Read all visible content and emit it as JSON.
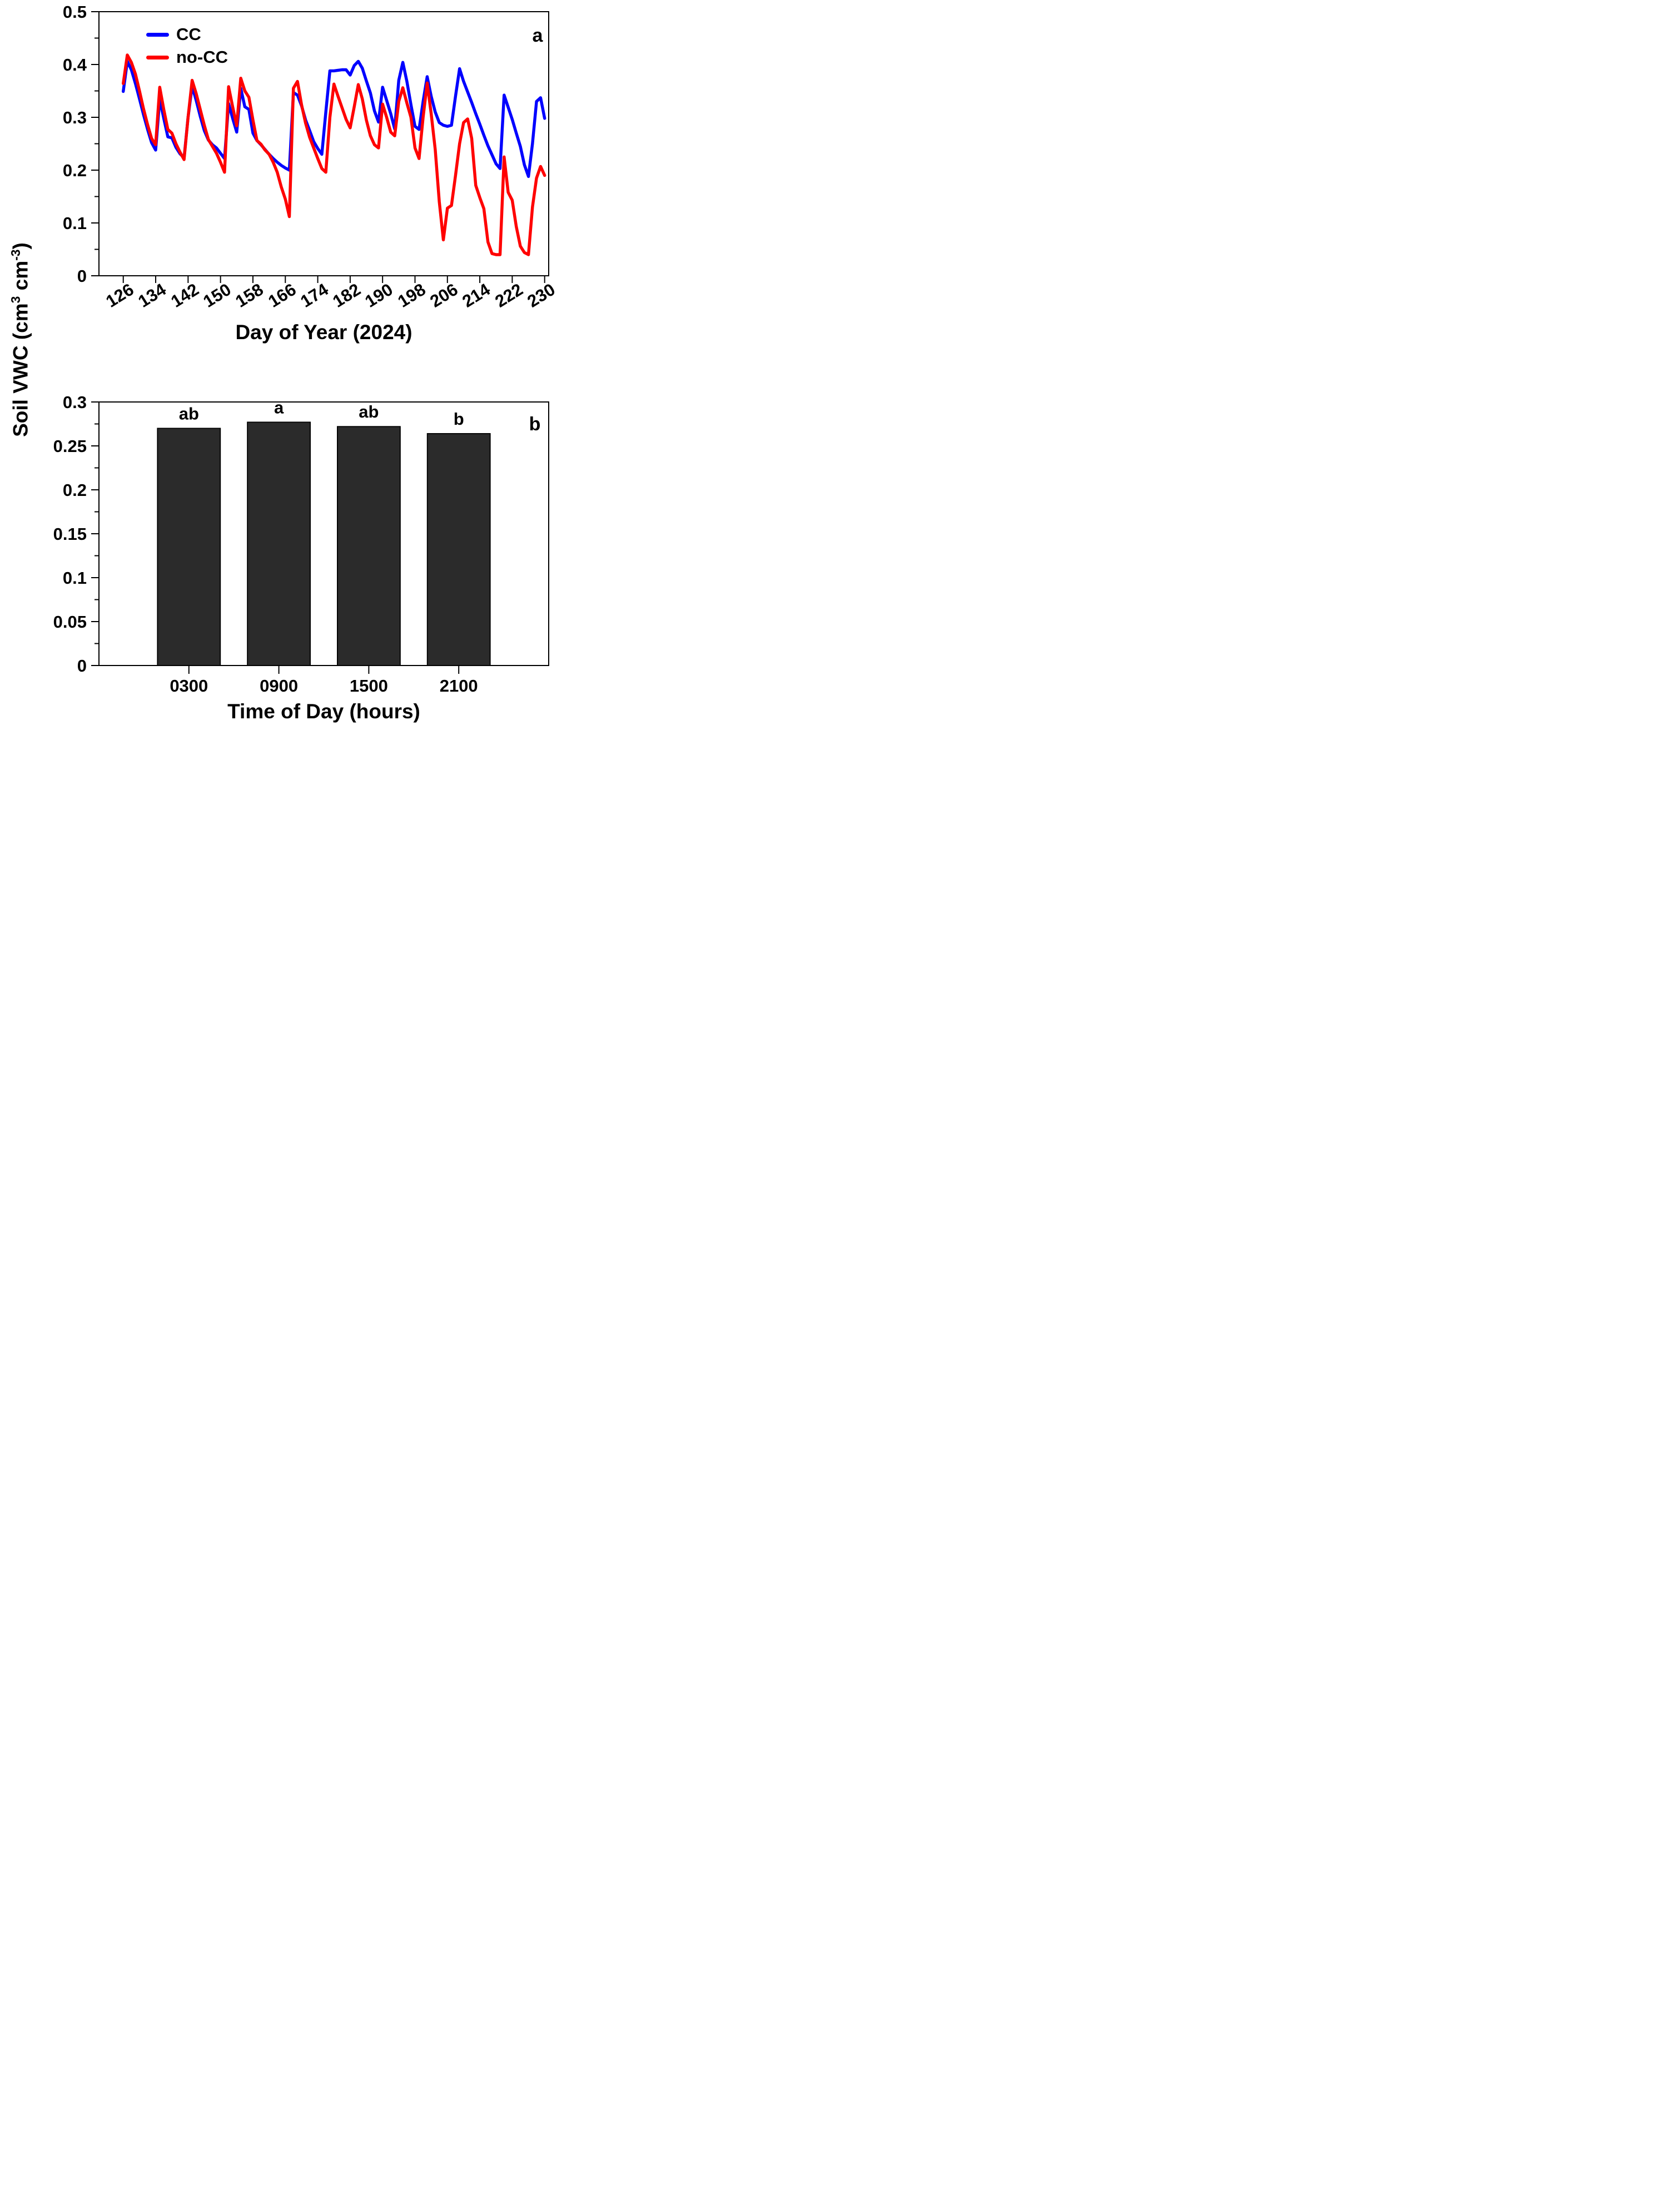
{
  "shared": {
    "y_label_parts": {
      "pre": "Soil VWC (cm",
      "sup1": "3",
      "mid": " cm",
      "sup2": "-3",
      "post": ")"
    }
  },
  "chart_data": [
    {
      "type": "line",
      "panel_label": "a",
      "xlabel": "Day of Year (2024)",
      "ylabel": "Soil VWC (cm^3 cm^-3)",
      "xlim": [
        120,
        231
      ],
      "ylim": [
        0,
        0.5
      ],
      "x_ticks": [
        126,
        134,
        142,
        150,
        158,
        166,
        174,
        182,
        190,
        198,
        206,
        214,
        222,
        230
      ],
      "y_tick_labels": [
        "0",
        "0.1",
        "0.2",
        "0.3",
        "0.4",
        "0.5"
      ],
      "y_minor_step": 0.05,
      "grid": false,
      "legend_position": "top-left",
      "x": [
        126,
        127,
        128,
        129,
        130,
        131,
        132,
        133,
        134,
        135,
        136,
        137,
        138,
        139,
        140,
        141,
        142,
        143,
        144,
        145,
        146,
        147,
        148,
        149,
        150,
        151,
        152,
        153,
        154,
        155,
        156,
        157,
        158,
        159,
        160,
        161,
        162,
        163,
        164,
        165,
        166,
        167,
        168,
        169,
        170,
        171,
        172,
        173,
        174,
        175,
        176,
        177,
        178,
        179,
        180,
        181,
        182,
        183,
        184,
        185,
        186,
        187,
        188,
        189,
        190,
        191,
        192,
        193,
        194,
        195,
        196,
        197,
        198,
        199,
        200,
        201,
        202,
        203,
        204,
        205,
        206,
        207,
        208,
        209,
        210,
        211,
        212,
        213,
        214,
        215,
        216,
        217,
        218,
        219,
        220,
        221,
        222,
        223,
        224,
        225,
        226,
        227,
        228,
        229,
        230
      ],
      "series": [
        {
          "name": "CC",
          "color": "#0000ff",
          "values": [
            0.349,
            0.406,
            0.39,
            0.364,
            0.335,
            0.305,
            0.277,
            0.252,
            0.238,
            0.335,
            0.298,
            0.263,
            0.261,
            0.243,
            0.231,
            0.223,
            0.3,
            0.359,
            0.332,
            0.302,
            0.275,
            0.257,
            0.248,
            0.242,
            0.232,
            0.222,
            0.326,
            0.298,
            0.272,
            0.355,
            0.32,
            0.315,
            0.27,
            0.256,
            0.248,
            0.239,
            0.23,
            0.222,
            0.215,
            0.209,
            0.204,
            0.2,
            0.347,
            0.342,
            0.322,
            0.295,
            0.275,
            0.254,
            0.241,
            0.23,
            0.31,
            0.388,
            0.388,
            0.389,
            0.39,
            0.39,
            0.38,
            0.398,
            0.406,
            0.393,
            0.369,
            0.346,
            0.312,
            0.291,
            0.357,
            0.332,
            0.307,
            0.278,
            0.37,
            0.404,
            0.368,
            0.324,
            0.283,
            0.277,
            0.33,
            0.377,
            0.34,
            0.31,
            0.29,
            0.285,
            0.283,
            0.285,
            0.34,
            0.392,
            0.368,
            0.348,
            0.328,
            0.307,
            0.287,
            0.266,
            0.246,
            0.229,
            0.212,
            0.203,
            0.342,
            0.319,
            0.296,
            0.27,
            0.245,
            0.21,
            0.188,
            0.25,
            0.33,
            0.337,
            0.298
          ]
        },
        {
          "name": "no-CC",
          "color": "#ff0000",
          "values": [
            0.364,
            0.418,
            0.404,
            0.382,
            0.35,
            0.316,
            0.286,
            0.26,
            0.248,
            0.357,
            0.315,
            0.277,
            0.27,
            0.25,
            0.234,
            0.22,
            0.3,
            0.37,
            0.345,
            0.315,
            0.285,
            0.258,
            0.245,
            0.232,
            0.215,
            0.196,
            0.358,
            0.32,
            0.284,
            0.374,
            0.35,
            0.338,
            0.295,
            0.256,
            0.249,
            0.238,
            0.23,
            0.215,
            0.196,
            0.168,
            0.145,
            0.112,
            0.355,
            0.368,
            0.324,
            0.289,
            0.262,
            0.242,
            0.222,
            0.203,
            0.196,
            0.3,
            0.363,
            0.34,
            0.318,
            0.296,
            0.28,
            0.32,
            0.362,
            0.335,
            0.295,
            0.265,
            0.248,
            0.242,
            0.325,
            0.3,
            0.272,
            0.265,
            0.33,
            0.356,
            0.327,
            0.3,
            0.242,
            0.222,
            0.3,
            0.365,
            0.307,
            0.239,
            0.14,
            0.068,
            0.128,
            0.133,
            0.19,
            0.25,
            0.29,
            0.297,
            0.26,
            0.171,
            0.148,
            0.127,
            0.064,
            0.042,
            0.04,
            0.04,
            0.225,
            0.158,
            0.143,
            0.093,
            0.056,
            0.044,
            0.04,
            0.13,
            0.185,
            0.207,
            0.19
          ]
        }
      ]
    },
    {
      "type": "bar",
      "panel_label": "b",
      "xlabel": "Time of Day (hours)",
      "ylabel": "Soil VWC (cm^3 cm^-3)",
      "categories": [
        "0300",
        "0900",
        "1500",
        "2100"
      ],
      "values": [
        0.27,
        0.277,
        0.272,
        0.264
      ],
      "sig_letters": [
        "ab",
        "a",
        "ab",
        "b"
      ],
      "ylim": [
        0,
        0.3
      ],
      "y_tick_labels": [
        "0",
        "0.05",
        "0.1",
        "0.15",
        "0.2",
        "0.25",
        "0.3"
      ],
      "y_minor_step": 0.025,
      "bar_color": "#2b2b2b",
      "grid": false
    }
  ]
}
